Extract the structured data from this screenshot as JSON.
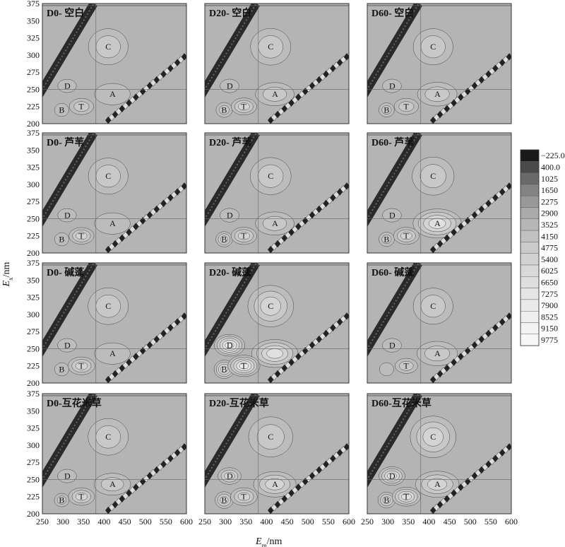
{
  "chart_data": {
    "type": "heatmap",
    "description_type": "excitation-emission matrix contour panels",
    "xlabel_main": "E",
    "xlabel_sub": "m",
    "xlabel_unit": "/nm",
    "ylabel_main": "E",
    "ylabel_sub": "x",
    "ylabel_unit": "/nm",
    "xlim": [
      250,
      600
    ],
    "ylim": [
      200,
      375
    ],
    "x_ticks": [
      "250",
      "300",
      "350",
      "400",
      "450",
      "500",
      "550",
      "600"
    ],
    "y_ticks": [
      "200",
      "225",
      "250",
      "275",
      "300",
      "325",
      "350",
      "375"
    ],
    "colorbar": {
      "levels": [
        "−225.0",
        "400.0",
        "1025",
        "1650",
        "2275",
        "2900",
        "3525",
        "4150",
        "4775",
        "5400",
        "6025",
        "6650",
        "7275",
        "7900",
        "8525",
        "9150",
        "9775"
      ],
      "colors": [
        "#1a1a1a",
        "#4a4a4a",
        "#6a6a6a",
        "#838383",
        "#999999",
        "#aaaaaa",
        "#b6b6b6",
        "#c1c1c1",
        "#cacaca",
        "#d2d2d2",
        "#d9d9d9",
        "#dfdfdf",
        "#e5e5e5",
        "#eaeaea",
        "#efefef",
        "#f3f3f3",
        "#f7f7f7"
      ]
    },
    "background_color": "#b4b4b4",
    "peaks": [
      {
        "name": "C",
        "em": 410,
        "ex": 312
      },
      {
        "name": "D",
        "em": 310,
        "ex": 255
      },
      {
        "name": "A",
        "em": 420,
        "ex": 243
      },
      {
        "name": "B",
        "em": 297,
        "ex": 220
      },
      {
        "name": "T",
        "em": 345,
        "ex": 225
      }
    ],
    "panels": [
      {
        "title": "D0- 空白",
        "intensity": {
          "C": 1.5,
          "D": 0.9,
          "A": 1.4,
          "B": 1.4,
          "T": 2.4
        },
        "labels": [
          "C",
          "D",
          "A",
          "B",
          "T"
        ]
      },
      {
        "title": "D20- 空白",
        "intensity": {
          "C": 1.6,
          "D": 1.0,
          "A": 2.0,
          "B": 2.4,
          "T": 2.8
        },
        "labels": [
          "C",
          "D",
          "A",
          "B",
          "T"
        ]
      },
      {
        "title": "D60- 空白",
        "intensity": {
          "C": 1.5,
          "D": 1.0,
          "A": 2.2,
          "B": 2.0,
          "T": 2.4
        },
        "labels": [
          "C",
          "D",
          "A",
          "B",
          "T"
        ]
      },
      {
        "title": "D0- 芦苇",
        "intensity": {
          "C": 1.5,
          "D": 0.9,
          "A": 1.4,
          "B": 1.4,
          "T": 2.6
        },
        "labels": [
          "C",
          "D",
          "A",
          "B",
          "T"
        ]
      },
      {
        "title": "D20- 芦苇",
        "intensity": {
          "C": 1.7,
          "D": 1.1,
          "A": 2.0,
          "B": 2.6,
          "T": 2.9
        },
        "labels": [
          "C",
          "D",
          "A",
          "B",
          "T"
        ]
      },
      {
        "title": "D60- 芦苇",
        "intensity": {
          "C": 1.9,
          "D": 1.0,
          "A": 4.0,
          "B": 2.0,
          "T": 2.8
        },
        "labels": [
          "C",
          "D",
          "A",
          "B",
          "T"
        ]
      },
      {
        "title": "D0- 碱蓬",
        "intensity": {
          "C": 1.6,
          "D": 1.0,
          "A": 1.4,
          "B": 1.4,
          "T": 3.2
        },
        "labels": [
          "C",
          "D",
          "A",
          "B",
          "T"
        ]
      },
      {
        "title": "D20- 碱蓬",
        "intensity": {
          "C": 2.6,
          "D": 5.2,
          "A": 3.6,
          "B": 4.4,
          "T": 5.0
        },
        "labels": [
          "C",
          "D",
          "B",
          "T"
        ]
      },
      {
        "title": "D60- 碱蓬",
        "intensity": {
          "C": 1.5,
          "D": 1.1,
          "A": 2.4,
          "B": 1.4,
          "T": 1.8
        },
        "labels": [
          "C",
          "D",
          "A",
          "T"
        ]
      },
      {
        "title": "D0-互花米草",
        "intensity": {
          "C": 1.6,
          "D": 1.0,
          "A": 1.6,
          "B": 1.6,
          "T": 3.0
        },
        "labels": [
          "C",
          "D",
          "A",
          "B",
          "T"
        ]
      },
      {
        "title": "D20-互花米草",
        "intensity": {
          "C": 2.3,
          "D": 2.6,
          "A": 2.8,
          "B": 3.4,
          "T": 3.2
        },
        "labels": [
          "C",
          "D",
          "A",
          "B",
          "T"
        ]
      },
      {
        "title": "D60-互花米草",
        "intensity": {
          "C": 2.6,
          "D": 3.6,
          "A": 3.0,
          "B": 3.0,
          "T": 3.8
        },
        "labels": [
          "C",
          "D",
          "A",
          "B",
          "T"
        ]
      }
    ]
  }
}
